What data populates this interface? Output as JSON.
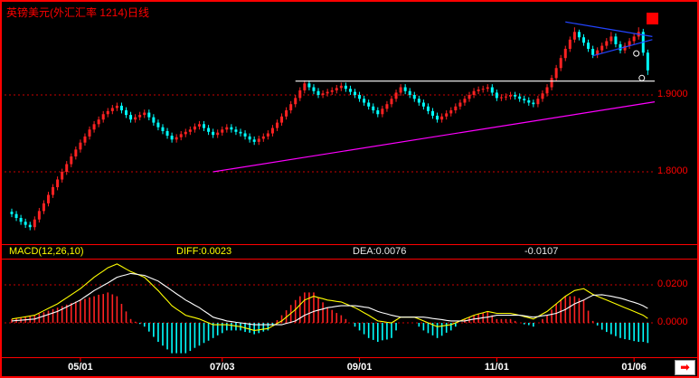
{
  "header": {
    "title": "英镑美元(外汇汇率 1214)日线"
  },
  "macd_row": {
    "params": "MACD(12,26,10)",
    "diff": "DIFF:0.0023",
    "dea": "DEA:0.0076",
    "hist": "-0.0107"
  },
  "nav": {
    "arrow_glyph": "➡"
  },
  "colors": {
    "up": "#ff2222",
    "down": "#00ffff",
    "diff_line": "#ffff00",
    "dea_line": "#ffffff",
    "grid": "#cc0000",
    "accent": "#ff0000",
    "axis_text": "#ff0000",
    "date_text": "#ffffff",
    "title_text": "#ff0000",
    "trendline": "#ff00ff",
    "triangle": "#2244ff",
    "resistance": "#ffffff"
  },
  "chart_data": [
    {
      "type": "candlestick",
      "title": "英镑美元(外汇汇率 1214)日线",
      "ylim": [
        1.71,
        2.0
      ],
      "y_ticks": [
        {
          "label": "1.9000",
          "price": 1.9
        },
        {
          "label": "1.8000",
          "price": 1.8
        }
      ],
      "x_ticks": [
        {
          "label": "05/01",
          "index": 15
        },
        {
          "label": "07/03",
          "index": 46
        },
        {
          "label": "09/01",
          "index": 76
        },
        {
          "label": "11/01",
          "index": 106
        },
        {
          "label": "01/06",
          "index": 136
        }
      ],
      "overlays": [
        {
          "name": "ascending-support-trendline",
          "color": "#ff00ff",
          "from_index": 44,
          "from_price": 1.8,
          "to_index": 141,
          "to_price": 1.891
        },
        {
          "name": "horizontal-resistance-line",
          "color": "#ffffff",
          "from_index": 62,
          "from_price": 1.918,
          "to_index": 141,
          "to_price": 1.918
        },
        {
          "name": "triangle-upper-line",
          "color": "#2244ff",
          "from_index": 121,
          "from_price": 1.995,
          "to_index": 140,
          "to_price": 1.976
        },
        {
          "name": "triangle-lower-line",
          "color": "#2244ff",
          "from_index": 127,
          "from_price": 1.951,
          "to_index": 140,
          "to_price": 1.972
        }
      ],
      "markers": [
        {
          "index": 136.5,
          "price": 1.954
        },
        {
          "index": 137.7,
          "price": 1.922
        }
      ],
      "ohlc": [
        [
          1.748,
          1.752,
          1.741,
          1.745
        ],
        [
          1.745,
          1.749,
          1.736,
          1.74
        ],
        [
          1.74,
          1.744,
          1.731,
          1.735
        ],
        [
          1.735,
          1.739,
          1.727,
          1.731
        ],
        [
          1.731,
          1.735,
          1.724,
          1.728
        ],
        [
          1.728,
          1.742,
          1.724,
          1.738
        ],
        [
          1.738,
          1.753,
          1.734,
          1.749
        ],
        [
          1.749,
          1.763,
          1.745,
          1.759
        ],
        [
          1.759,
          1.774,
          1.755,
          1.77
        ],
        [
          1.77,
          1.784,
          1.766,
          1.78
        ],
        [
          1.78,
          1.794,
          1.776,
          1.79
        ],
        [
          1.79,
          1.804,
          1.786,
          1.8
        ],
        [
          1.8,
          1.814,
          1.796,
          1.81
        ],
        [
          1.81,
          1.824,
          1.806,
          1.82
        ],
        [
          1.82,
          1.833,
          1.816,
          1.829
        ],
        [
          1.829,
          1.842,
          1.825,
          1.838
        ],
        [
          1.838,
          1.85,
          1.834,
          1.846
        ],
        [
          1.846,
          1.859,
          1.842,
          1.855
        ],
        [
          1.855,
          1.866,
          1.851,
          1.862
        ],
        [
          1.862,
          1.872,
          1.858,
          1.868
        ],
        [
          1.868,
          1.879,
          1.864,
          1.875
        ],
        [
          1.875,
          1.883,
          1.871,
          1.879
        ],
        [
          1.879,
          1.887,
          1.875,
          1.883
        ],
        [
          1.883,
          1.89,
          1.879,
          1.886
        ],
        [
          1.886,
          1.89,
          1.876,
          1.88
        ],
        [
          1.88,
          1.884,
          1.87,
          1.874
        ],
        [
          1.874,
          1.878,
          1.864,
          1.868
        ],
        [
          1.868,
          1.875,
          1.864,
          1.871
        ],
        [
          1.871,
          1.878,
          1.867,
          1.874
        ],
        [
          1.874,
          1.881,
          1.87,
          1.877
        ],
        [
          1.877,
          1.881,
          1.867,
          1.871
        ],
        [
          1.871,
          1.875,
          1.86,
          1.864
        ],
        [
          1.864,
          1.868,
          1.854,
          1.858
        ],
        [
          1.858,
          1.862,
          1.849,
          1.853
        ],
        [
          1.853,
          1.857,
          1.843,
          1.847
        ],
        [
          1.847,
          1.851,
          1.838,
          1.842
        ],
        [
          1.842,
          1.849,
          1.838,
          1.845
        ],
        [
          1.845,
          1.853,
          1.841,
          1.849
        ],
        [
          1.849,
          1.856,
          1.845,
          1.852
        ],
        [
          1.852,
          1.859,
          1.848,
          1.855
        ],
        [
          1.855,
          1.863,
          1.851,
          1.859
        ],
        [
          1.859,
          1.866,
          1.855,
          1.862
        ],
        [
          1.862,
          1.866,
          1.853,
          1.857
        ],
        [
          1.857,
          1.861,
          1.848,
          1.852
        ],
        [
          1.852,
          1.856,
          1.844,
          1.848
        ],
        [
          1.848,
          1.855,
          1.844,
          1.851
        ],
        [
          1.851,
          1.859,
          1.847,
          1.855
        ],
        [
          1.855,
          1.862,
          1.851,
          1.858
        ],
        [
          1.858,
          1.862,
          1.851,
          1.855
        ],
        [
          1.855,
          1.859,
          1.848,
          1.852
        ],
        [
          1.852,
          1.856,
          1.846,
          1.85
        ],
        [
          1.85,
          1.854,
          1.842,
          1.846
        ],
        [
          1.846,
          1.85,
          1.838,
          1.842
        ],
        [
          1.842,
          1.846,
          1.835,
          1.839
        ],
        [
          1.839,
          1.847,
          1.835,
          1.843
        ],
        [
          1.843,
          1.85,
          1.839,
          1.846
        ],
        [
          1.846,
          1.854,
          1.842,
          1.85
        ],
        [
          1.85,
          1.861,
          1.846,
          1.857
        ],
        [
          1.857,
          1.868,
          1.853,
          1.864
        ],
        [
          1.864,
          1.876,
          1.86,
          1.872
        ],
        [
          1.872,
          1.884,
          1.868,
          1.88
        ],
        [
          1.88,
          1.892,
          1.876,
          1.888
        ],
        [
          1.888,
          1.9,
          1.884,
          1.896
        ],
        [
          1.896,
          1.91,
          1.892,
          1.906
        ],
        [
          1.906,
          1.919,
          1.902,
          1.915
        ],
        [
          1.915,
          1.919,
          1.906,
          1.91
        ],
        [
          1.91,
          1.914,
          1.901,
          1.905
        ],
        [
          1.905,
          1.909,
          1.896,
          1.9
        ],
        [
          1.9,
          1.906,
          1.896,
          1.902
        ],
        [
          1.902,
          1.908,
          1.898,
          1.904
        ],
        [
          1.904,
          1.91,
          1.9,
          1.906
        ],
        [
          1.906,
          1.913,
          1.902,
          1.909
        ],
        [
          1.909,
          1.916,
          1.905,
          1.912
        ],
        [
          1.912,
          1.916,
          1.904,
          1.908
        ],
        [
          1.908,
          1.912,
          1.9,
          1.904
        ],
        [
          1.904,
          1.908,
          1.896,
          1.9
        ],
        [
          1.9,
          1.904,
          1.891,
          1.895
        ],
        [
          1.895,
          1.899,
          1.886,
          1.89
        ],
        [
          1.89,
          1.894,
          1.881,
          1.885
        ],
        [
          1.885,
          1.889,
          1.876,
          1.88
        ],
        [
          1.88,
          1.884,
          1.871,
          1.875
        ],
        [
          1.875,
          1.886,
          1.871,
          1.882
        ],
        [
          1.882,
          1.892,
          1.878,
          1.888
        ],
        [
          1.888,
          1.899,
          1.884,
          1.895
        ],
        [
          1.895,
          1.907,
          1.891,
          1.903
        ],
        [
          1.903,
          1.914,
          1.899,
          1.91
        ],
        [
          1.91,
          1.914,
          1.901,
          1.905
        ],
        [
          1.905,
          1.909,
          1.896,
          1.9
        ],
        [
          1.9,
          1.904,
          1.891,
          1.895
        ],
        [
          1.895,
          1.899,
          1.886,
          1.89
        ],
        [
          1.89,
          1.894,
          1.881,
          1.885
        ],
        [
          1.885,
          1.889,
          1.875,
          1.879
        ],
        [
          1.879,
          1.883,
          1.869,
          1.873
        ],
        [
          1.873,
          1.877,
          1.864,
          1.868
        ],
        [
          1.868,
          1.876,
          1.864,
          1.872
        ],
        [
          1.872,
          1.88,
          1.868,
          1.876
        ],
        [
          1.876,
          1.884,
          1.872,
          1.88
        ],
        [
          1.88,
          1.889,
          1.876,
          1.885
        ],
        [
          1.885,
          1.894,
          1.881,
          1.89
        ],
        [
          1.89,
          1.899,
          1.886,
          1.895
        ],
        [
          1.895,
          1.904,
          1.891,
          1.9
        ],
        [
          1.9,
          1.909,
          1.896,
          1.905
        ],
        [
          1.905,
          1.911,
          1.901,
          1.907
        ],
        [
          1.907,
          1.912,
          1.903,
          1.908
        ],
        [
          1.908,
          1.914,
          1.904,
          1.91
        ],
        [
          1.91,
          1.914,
          1.899,
          1.903
        ],
        [
          1.903,
          1.907,
          1.892,
          1.896
        ],
        [
          1.896,
          1.901,
          1.892,
          1.897
        ],
        [
          1.897,
          1.902,
          1.893,
          1.898
        ],
        [
          1.898,
          1.904,
          1.894,
          1.9
        ],
        [
          1.9,
          1.904,
          1.894,
          1.898
        ],
        [
          1.898,
          1.902,
          1.891,
          1.895
        ],
        [
          1.895,
          1.899,
          1.889,
          1.893
        ],
        [
          1.893,
          1.897,
          1.886,
          1.89
        ],
        [
          1.89,
          1.894,
          1.884,
          1.888
        ],
        [
          1.888,
          1.899,
          1.884,
          1.895
        ],
        [
          1.895,
          1.906,
          1.891,
          1.902
        ],
        [
          1.902,
          1.914,
          1.898,
          1.91
        ],
        [
          1.91,
          1.926,
          1.906,
          1.922
        ],
        [
          1.922,
          1.939,
          1.918,
          1.935
        ],
        [
          1.935,
          1.952,
          1.931,
          1.948
        ],
        [
          1.948,
          1.964,
          1.944,
          1.96
        ],
        [
          1.96,
          1.976,
          1.956,
          1.972
        ],
        [
          1.972,
          1.988,
          1.968,
          1.982
        ],
        [
          1.982,
          1.985,
          1.971,
          1.975
        ],
        [
          1.975,
          1.979,
          1.964,
          1.968
        ],
        [
          1.968,
          1.972,
          1.956,
          1.96
        ],
        [
          1.96,
          1.964,
          1.948,
          1.952
        ],
        [
          1.952,
          1.962,
          1.948,
          1.958
        ],
        [
          1.958,
          1.968,
          1.954,
          1.964
        ],
        [
          1.964,
          1.974,
          1.96,
          1.97
        ],
        [
          1.97,
          1.982,
          1.966,
          1.976
        ],
        [
          1.976,
          1.98,
          1.962,
          1.966
        ],
        [
          1.966,
          1.97,
          1.954,
          1.958
        ],
        [
          1.958,
          1.968,
          1.954,
          1.964
        ],
        [
          1.964,
          1.974,
          1.96,
          1.97
        ],
        [
          1.97,
          1.98,
          1.966,
          1.976
        ],
        [
          1.976,
          1.988,
          1.972,
          1.982
        ],
        [
          1.982,
          1.986,
          1.951,
          1.955
        ],
        [
          1.955,
          1.959,
          1.926,
          1.932
        ]
      ]
    },
    {
      "type": "line",
      "title": "MACD(12,26,10)",
      "hist_formula": "2*(DIFF-DEA)",
      "y_ticks": [
        {
          "label": "0.0200",
          "value": 0.02
        },
        {
          "label": "0.0000",
          "value": 0.0
        }
      ],
      "last_values": {
        "diff": 0.0023,
        "dea": 0.0076,
        "hist": -0.0107
      },
      "diff": [
        0.002,
        0.0024,
        0.0028,
        0.0032,
        0.0036,
        0.004,
        0.0052,
        0.0064,
        0.0076,
        0.0088,
        0.01,
        0.0116,
        0.0132,
        0.0148,
        0.0164,
        0.018,
        0.02,
        0.022,
        0.024,
        0.0257,
        0.0273,
        0.029,
        0.03,
        0.031,
        0.0297,
        0.0283,
        0.027,
        0.026,
        0.025,
        0.024,
        0.0217,
        0.0193,
        0.017,
        0.0143,
        0.0117,
        0.009,
        0.0073,
        0.0057,
        0.004,
        0.0033,
        0.0027,
        0.002,
        0.001,
        0.0,
        -0.001,
        -0.001,
        -0.001,
        -0.001,
        -0.0013,
        -0.0017,
        -0.002,
        -0.0027,
        -0.0033,
        -0.004,
        -0.0037,
        -0.0033,
        -0.003,
        -0.0017,
        -0.0003,
        0.001,
        0.003,
        0.005,
        0.007,
        0.0095,
        0.012,
        0.013,
        0.014,
        0.0133,
        0.0127,
        0.012,
        0.0117,
        0.0113,
        0.011,
        0.01,
        0.009,
        0.008,
        0.0067,
        0.0053,
        0.004,
        0.0025,
        0.001,
        0.0007,
        0.0003,
        0.0,
        0.0015,
        0.003,
        0.003,
        0.003,
        0.003,
        0.002,
        0.001,
        0.0,
        -0.001,
        -0.002,
        -0.0017,
        -0.0013,
        -0.001,
        0.0,
        0.001,
        0.002,
        0.003,
        0.004,
        0.0047,
        0.0053,
        0.006,
        0.0055,
        0.005,
        0.005,
        0.005,
        0.005,
        0.0045,
        0.004,
        0.0033,
        0.0027,
        0.002,
        0.0033,
        0.0047,
        0.006,
        0.008,
        0.01,
        0.012,
        0.014,
        0.0155,
        0.017,
        0.0175,
        0.018,
        0.0165,
        0.015,
        0.014,
        0.013,
        0.012,
        0.011,
        0.01,
        0.009,
        0.008,
        0.007,
        0.006,
        0.005,
        0.004,
        0.0023
      ],
      "dea": [
        0.001,
        0.0012,
        0.0014,
        0.0016,
        0.0018,
        0.002,
        0.0028,
        0.0036,
        0.0044,
        0.0052,
        0.006,
        0.0072,
        0.0084,
        0.0096,
        0.0108,
        0.012,
        0.0137,
        0.0153,
        0.017,
        0.0183,
        0.0197,
        0.021,
        0.0225,
        0.024,
        0.0247,
        0.0253,
        0.026,
        0.0257,
        0.0253,
        0.025,
        0.024,
        0.023,
        0.022,
        0.0203,
        0.0187,
        0.017,
        0.0153,
        0.0137,
        0.012,
        0.0107,
        0.0093,
        0.008,
        0.0063,
        0.0047,
        0.003,
        0.0023,
        0.0017,
        0.001,
        0.0007,
        0.0003,
        0.0,
        -0.0003,
        -0.0007,
        -0.001,
        -0.001,
        -0.001,
        -0.001,
        -0.001,
        -0.001,
        -0.001,
        -0.0003,
        0.0003,
        0.001,
        0.0025,
        0.004,
        0.005,
        0.006,
        0.0067,
        0.0073,
        0.008,
        0.0083,
        0.0087,
        0.009,
        0.009,
        0.009,
        0.009,
        0.0087,
        0.0083,
        0.008,
        0.007,
        0.006,
        0.0053,
        0.0047,
        0.004,
        0.0035,
        0.003,
        0.003,
        0.003,
        0.003,
        0.003,
        0.003,
        0.0027,
        0.0023,
        0.002,
        0.0017,
        0.0013,
        0.001,
        0.001,
        0.001,
        0.001,
        0.0015,
        0.002,
        0.0023,
        0.0027,
        0.003,
        0.0035,
        0.004,
        0.004,
        0.004,
        0.004,
        0.004,
        0.004,
        0.0037,
        0.0033,
        0.003,
        0.0033,
        0.0037,
        0.004,
        0.0045,
        0.005,
        0.006,
        0.007,
        0.0085,
        0.01,
        0.011,
        0.012,
        0.0133,
        0.0145,
        0.0147,
        0.0148,
        0.0144,
        0.014,
        0.0135,
        0.013,
        0.0123,
        0.0115,
        0.0108,
        0.01,
        0.009,
        0.0076
      ]
    }
  ]
}
